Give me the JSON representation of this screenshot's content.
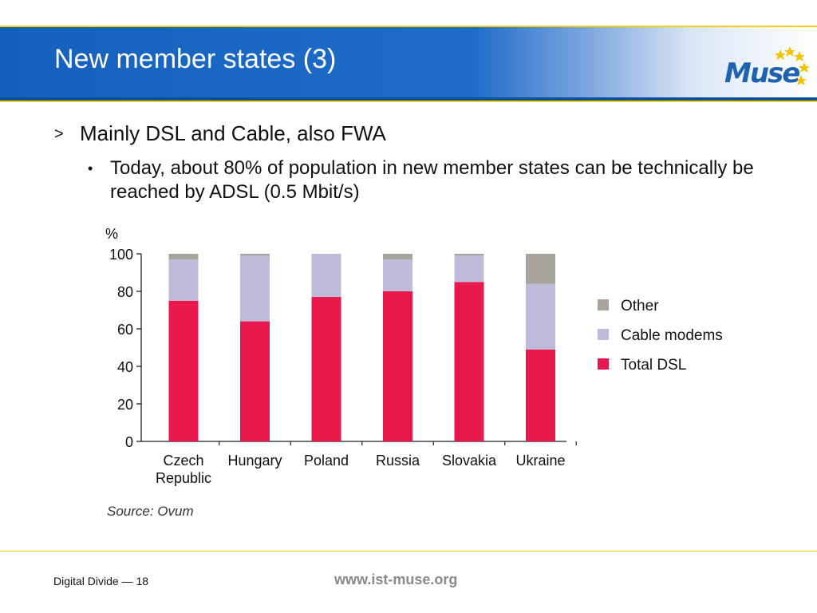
{
  "slide": {
    "title": "New member states (3)",
    "logo_text": "Muse"
  },
  "bullets": {
    "level1": {
      "marker": ">",
      "text": "Mainly DSL and Cable, also FWA"
    },
    "level2": {
      "marker": "•",
      "text": "Today, about 80% of population in new member states can be technically be reached by ADSL (0.5 Mbit/s)"
    }
  },
  "chart_data": {
    "type": "bar",
    "stacked": true,
    "ylabel": "%",
    "ylim": [
      0,
      100
    ],
    "yticks": [
      0,
      20,
      40,
      60,
      80,
      100
    ],
    "categories": [
      "Czech Republic",
      "Hungary",
      "Poland",
      "Russia",
      "Slovakia",
      "Ukraine"
    ],
    "category_lines": [
      [
        "Czech",
        "Republic"
      ],
      [
        "Hungary"
      ],
      [
        "Poland"
      ],
      [
        "Russia"
      ],
      [
        "Slovakia"
      ],
      [
        "Ukraine"
      ]
    ],
    "series": [
      {
        "name": "Total DSL",
        "color": "#e8174c",
        "values": [
          75,
          64,
          77,
          80,
          85,
          49
        ]
      },
      {
        "name": "Cable modems",
        "color": "#bdbbd9",
        "values": [
          22,
          35,
          23,
          17,
          14,
          35
        ]
      },
      {
        "name": "Other",
        "color": "#a9a49b",
        "values": [
          3,
          1,
          0,
          3,
          1,
          16
        ]
      }
    ],
    "legend": {
      "placement": "right",
      "order": [
        "Other",
        "Cable modems",
        "Total DSL"
      ]
    },
    "grid": false,
    "source": "Source: Ovum"
  },
  "footer": {
    "left": "Digital Divide — 18",
    "center": "www.ist-muse.org"
  },
  "colors": {
    "header_blue": "#1560bd",
    "accent_yellow": "#f2d200"
  }
}
